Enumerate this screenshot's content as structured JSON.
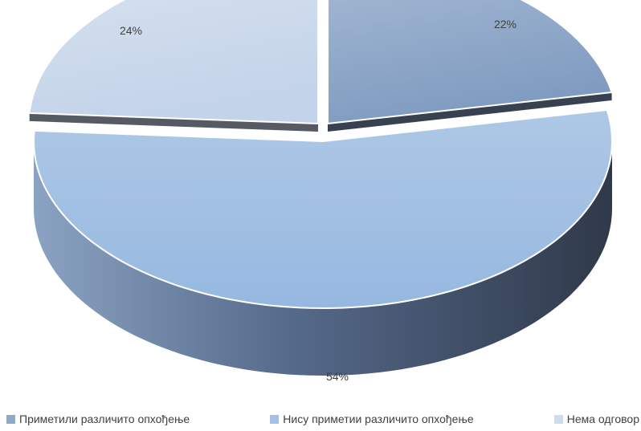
{
  "chart_data": {
    "type": "pie",
    "style": "3d-exploded",
    "categories": [
      "Приметили различито опхођење",
      "Нису приметии различито опхођење",
      "Нема одговор"
    ],
    "values": [
      22,
      54,
      24
    ],
    "data_labels": [
      "22%",
      "54%",
      "24%"
    ],
    "colors": [
      "#8fa9c9",
      "#a4c1e3",
      "#cfdcee"
    ],
    "side_colors": [
      "#37414f",
      "#4f6079",
      "#565a63"
    ],
    "legend_position": "bottom",
    "title": ""
  }
}
